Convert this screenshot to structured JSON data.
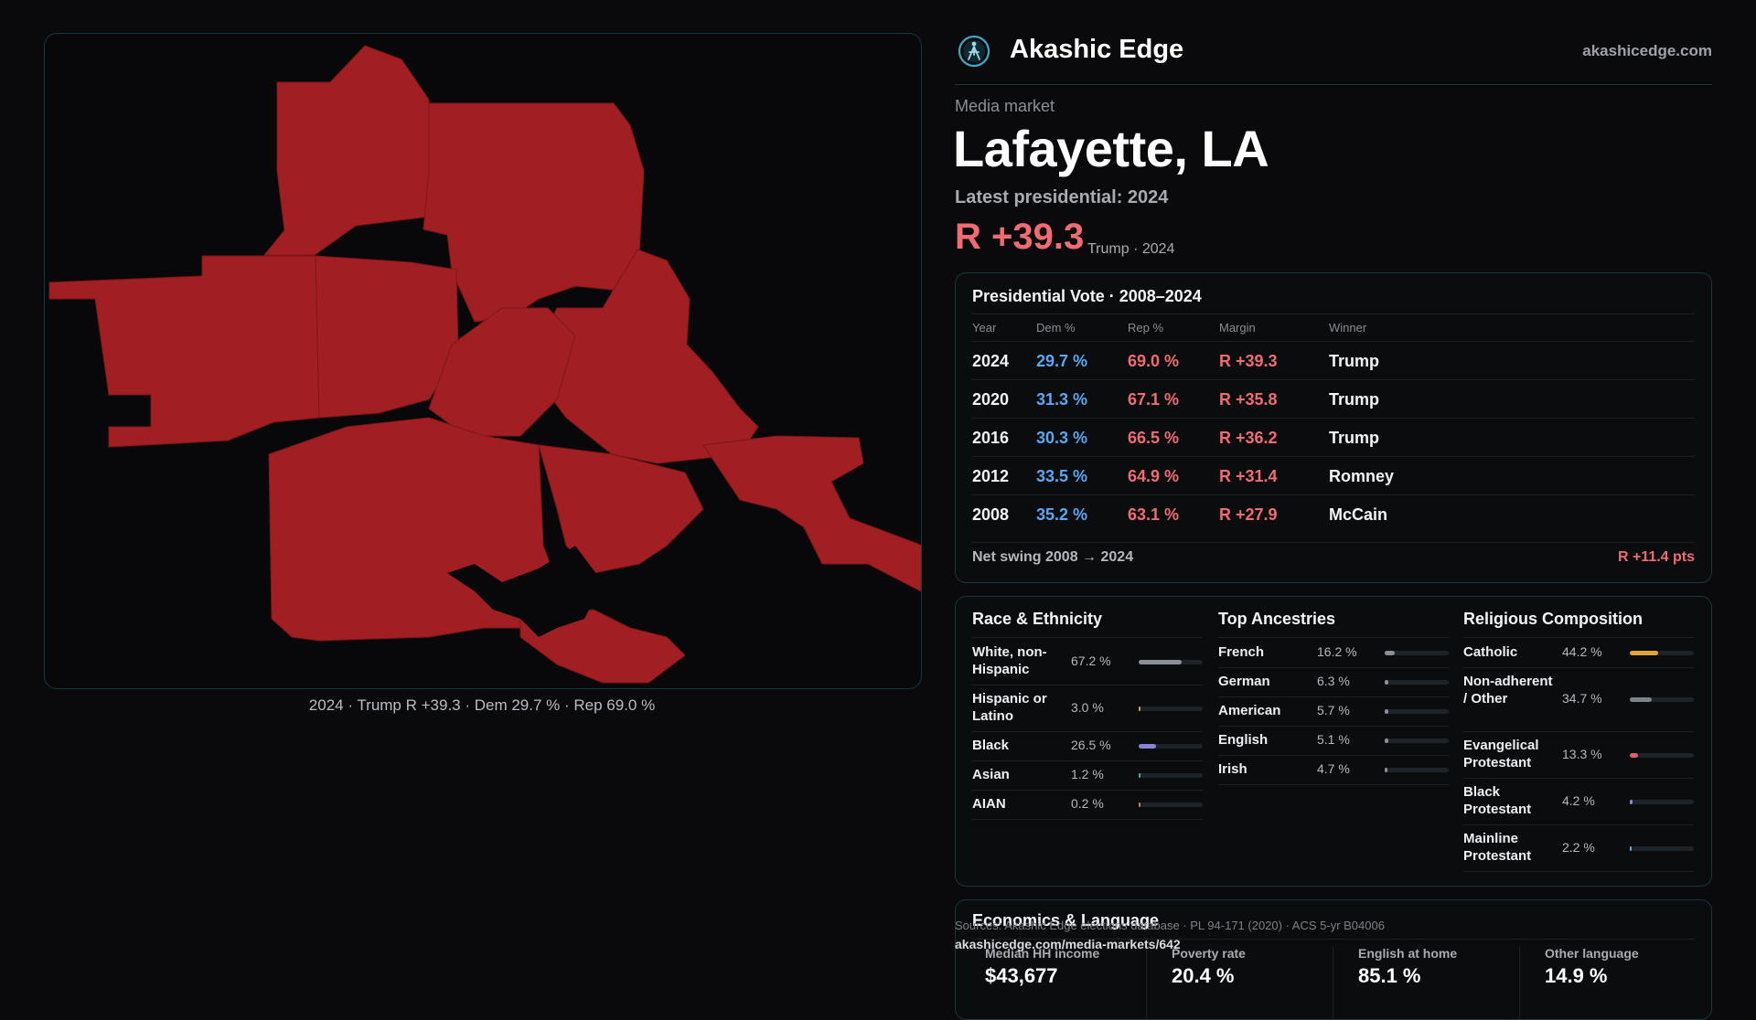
{
  "map": {
    "caption": "2024 · Trump R +39.3 · Dem 29.7 % · Rep 69.0 %",
    "fill_color": "#a11f22"
  },
  "brand": {
    "name": "Akashic Edge",
    "url": "akashicedge.com",
    "logo_icon": "compass-figure-icon"
  },
  "market": {
    "kicker": "Media market",
    "title": "Lafayette, LA",
    "latest_label": "Latest presidential: 2024",
    "margin": "R +39.3",
    "margin_note": "Trump · 2024"
  },
  "vote_table": {
    "title": "Presidential Vote · 2008–2024",
    "headers": {
      "year": "Year",
      "dem": "Dem %",
      "rep": "Rep %",
      "margin": "Margin",
      "winner": "Winner"
    },
    "rows": [
      {
        "year": "2024",
        "dem": "29.7 %",
        "rep": "69.0 %",
        "margin": "R +39.3",
        "winner": "Trump"
      },
      {
        "year": "2020",
        "dem": "31.3 %",
        "rep": "67.1 %",
        "margin": "R +35.8",
        "winner": "Trump"
      },
      {
        "year": "2016",
        "dem": "30.3 %",
        "rep": "66.5 %",
        "margin": "R +36.2",
        "winner": "Trump"
      },
      {
        "year": "2012",
        "dem": "33.5 %",
        "rep": "64.9 %",
        "margin": "R +31.4",
        "winner": "Romney"
      },
      {
        "year": "2008",
        "dem": "35.2 %",
        "rep": "63.1 %",
        "margin": "R +27.9",
        "winner": "McCain"
      }
    ],
    "swing_label": "Net swing 2008 → 2024",
    "swing_value": "R +11.4 pts"
  },
  "race": {
    "title": "Race & Ethnicity",
    "items": [
      {
        "label": "White, non-Hispanic",
        "value": "67.2 %",
        "pct": 67.2,
        "color": "#8a8f98"
      },
      {
        "label": "Hispanic or Latino",
        "value": "3.0 %",
        "pct": 3.0,
        "color": "#d9a23a"
      },
      {
        "label": "Black",
        "value": "26.5 %",
        "pct": 26.5,
        "color": "#8b84d6"
      },
      {
        "label": "Asian",
        "value": "1.2 %",
        "pct": 1.2,
        "color": "#3bb39a"
      },
      {
        "label": "AIAN",
        "value": "0.2 %",
        "pct": 0.2,
        "color": "#c77d5a"
      }
    ]
  },
  "ancestry": {
    "title": "Top Ancestries",
    "items": [
      {
        "label": "French",
        "value": "16.2 %",
        "pct": 16.2,
        "color": "#8a8f98"
      },
      {
        "label": "German",
        "value": "6.3 %",
        "pct": 6.3,
        "color": "#8a8f98"
      },
      {
        "label": "American",
        "value": "5.7 %",
        "pct": 5.7,
        "color": "#8a8f98"
      },
      {
        "label": "English",
        "value": "5.1 %",
        "pct": 5.1,
        "color": "#8a8f98"
      },
      {
        "label": "Irish",
        "value": "4.7 %",
        "pct": 4.7,
        "color": "#8a8f98"
      }
    ]
  },
  "religion": {
    "title": "Religious Composition",
    "items": [
      {
        "label": "Catholic",
        "value": "44.2 %",
        "pct": 44.2,
        "color": "#e0a63a"
      },
      {
        "label": "Non-adherent / Other",
        "value": "34.7 %",
        "pct": 34.7,
        "color": "#7d838c"
      },
      {
        "label": "Evangelical Protestant",
        "value": "13.3 %",
        "pct": 13.3,
        "color": "#e2615d"
      },
      {
        "label": "Black Protestant",
        "value": "4.2 %",
        "pct": 4.2,
        "color": "#8b84d6"
      },
      {
        "label": "Mainline Protestant",
        "value": "2.2 %",
        "pct": 2.2,
        "color": "#5aa6f2"
      }
    ]
  },
  "economics": {
    "title": "Economics & Language",
    "stats": [
      {
        "label": "Median HH income",
        "value": "$43,677"
      },
      {
        "label": "Poverty rate",
        "value": "20.4 %"
      },
      {
        "label": "English at home",
        "value": "85.1 %"
      },
      {
        "label": "Other language",
        "value": "14.9 %"
      }
    ]
  },
  "footer": {
    "sources": "Sources: Akashic Edge elections database · PL 94-171 (2020) · ACS 5-yr B04006",
    "permalink": "akashicedge.com/media-markets/642"
  }
}
